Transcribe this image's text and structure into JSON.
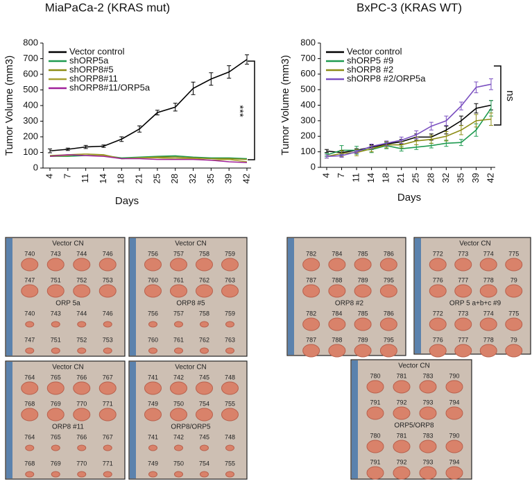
{
  "chart_data": [
    {
      "type": "line",
      "title": "MiaPaCa-2 (KRAS mut)",
      "y_label": "Tumor Volume (mm3)",
      "x_label": "Days",
      "categories": [
        "4",
        "7",
        "11",
        "14",
        "18",
        "21",
        "25",
        "28",
        "32",
        "35",
        "39",
        "42"
      ],
      "ylim": [
        0,
        800
      ],
      "yticks": [
        0,
        100,
        200,
        300,
        400,
        500,
        600,
        700,
        800
      ],
      "annotation": "***",
      "series": [
        {
          "name": "Vector control",
          "color": "#000000",
          "values": [
            110,
            120,
            135,
            140,
            185,
            250,
            355,
            390,
            510,
            570,
            615,
            695
          ],
          "errors": [
            12,
            8,
            10,
            8,
            15,
            20,
            15,
            25,
            40,
            40,
            40,
            30
          ]
        },
        {
          "name": "shORP5a",
          "color": "#1e9a50",
          "values": [
            75,
            75,
            80,
            80,
            65,
            70,
            75,
            78,
            70,
            65,
            65,
            60
          ]
        },
        {
          "name": "shORP8#5",
          "color": "#8c8c14",
          "values": [
            80,
            85,
            90,
            85,
            60,
            65,
            70,
            70,
            65,
            60,
            60,
            55
          ]
        },
        {
          "name": "shORP8#11",
          "color": "#a8a030",
          "values": [
            75,
            80,
            90,
            80,
            60,
            65,
            65,
            60,
            60,
            50,
            55,
            40
          ]
        },
        {
          "name": "shORP8#11/ORP5a",
          "color": "#a0209a",
          "values": [
            75,
            85,
            80,
            75,
            60,
            60,
            55,
            55,
            55,
            50,
            40,
            35
          ]
        }
      ]
    },
    {
      "type": "line",
      "title": "BxPC-3 (KRAS WT)",
      "y_label": "Tumor Volume (mm3)",
      "x_label": "Days",
      "categories": [
        "4",
        "7",
        "11",
        "14",
        "18",
        "21",
        "25",
        "28",
        "32",
        "35",
        "39",
        "42"
      ],
      "ylim": [
        0,
        800
      ],
      "yticks": [
        0,
        100,
        200,
        300,
        400,
        500,
        600,
        700,
        800
      ],
      "annotation": "ns",
      "series": [
        {
          "name": "Vector control",
          "color": "#000000",
          "values": [
            105,
            95,
            110,
            130,
            150,
            165,
            195,
            195,
            240,
            300,
            380,
            400
          ],
          "errors": [
            10,
            10,
            10,
            15,
            15,
            15,
            20,
            20,
            25,
            30,
            30,
            30
          ]
        },
        {
          "name": "shORP5 #9",
          "color": "#1e9a50",
          "values": [
            80,
            110,
            110,
            115,
            140,
            120,
            130,
            140,
            155,
            160,
            240,
            380
          ],
          "errors": [
            10,
            30,
            25,
            20,
            20,
            15,
            15,
            15,
            20,
            20,
            40,
            50
          ]
        },
        {
          "name": "shORP8 #2",
          "color": "#8c8c14",
          "values": [
            70,
            90,
            95,
            120,
            145,
            145,
            170,
            180,
            200,
            240,
            300,
            310
          ],
          "errors": [
            10,
            20,
            20,
            20,
            20,
            20,
            25,
            25,
            30,
            30,
            40,
            40
          ]
        },
        {
          "name": "shORP8 #2/ORP5a",
          "color": "#7a4fc0",
          "values": [
            70,
            75,
            100,
            135,
            155,
            175,
            210,
            265,
            300,
            395,
            515,
            535
          ],
          "errors": [
            10,
            10,
            10,
            15,
            15,
            20,
            25,
            25,
            30,
            25,
            35,
            35
          ]
        }
      ]
    }
  ],
  "photo_panels": [
    {
      "top_label": "Vector CN",
      "top_rows": [
        [
          "740",
          "743",
          "744",
          "746"
        ],
        [
          "747",
          "751",
          "752",
          "753"
        ]
      ],
      "bottom_label": "ORP 5a",
      "bottom_rows": [
        [
          "740",
          "743",
          "744",
          "746"
        ],
        [
          "747",
          "751",
          "752",
          "753"
        ]
      ]
    },
    {
      "top_label": "Vector CN",
      "top_rows": [
        [
          "756",
          "757",
          "758",
          "759"
        ],
        [
          "760",
          "761",
          "762",
          "763"
        ]
      ],
      "bottom_label": "ORP8 #5",
      "bottom_rows": [
        [
          "756",
          "757",
          "758",
          "759"
        ],
        [
          "760",
          "761",
          "762",
          "763"
        ]
      ]
    },
    {
      "top_label": "Vector CN",
      "top_rows": [
        [
          "764",
          "765",
          "766",
          "767"
        ],
        [
          "768",
          "769",
          "770",
          "771"
        ]
      ],
      "bottom_label": "ORP8 #11",
      "bottom_rows": [
        [
          "764",
          "765",
          "766",
          "767"
        ],
        [
          "768",
          "769",
          "770",
          "771"
        ]
      ]
    },
    {
      "top_label": "Vector CN",
      "top_rows": [
        [
          "741",
          "742",
          "745",
          "748"
        ],
        [
          "749",
          "750",
          "754",
          "755"
        ]
      ],
      "bottom_label": "ORP8/ORP5",
      "bottom_rows": [
        [
          "741",
          "742",
          "745",
          "748"
        ],
        [
          "749",
          "750",
          "754",
          "755"
        ]
      ]
    },
    {
      "top_rows": [
        [
          "782",
          "784",
          "785",
          "786"
        ],
        [
          "787",
          "788",
          "789",
          "795"
        ]
      ],
      "bottom_label": "ORP8 #2",
      "bottom_rows": [
        [
          "782",
          "784",
          "785",
          "786"
        ],
        [
          "787",
          "788",
          "789",
          "795"
        ]
      ]
    },
    {
      "top_label": "Vector CN",
      "top_rows": [
        [
          "772",
          "773",
          "774",
          "775"
        ],
        [
          "776",
          "777",
          "778",
          "79"
        ]
      ],
      "bottom_label": "ORP 5 a+b+c #9",
      "bottom_rows": [
        [
          "772",
          "773",
          "774",
          "775"
        ],
        [
          "776",
          "777",
          "778",
          "79"
        ]
      ]
    },
    {
      "top_label": "Vector CN",
      "top_rows": [
        [
          "780",
          "781",
          "783",
          "790"
        ],
        [
          "791",
          "792",
          "793",
          "794"
        ]
      ],
      "bottom_label": "ORP5/ORP8",
      "bottom_rows": [
        [
          "780",
          "781",
          "783",
          "790"
        ],
        [
          "791",
          "792",
          "793",
          "794"
        ]
      ]
    }
  ]
}
